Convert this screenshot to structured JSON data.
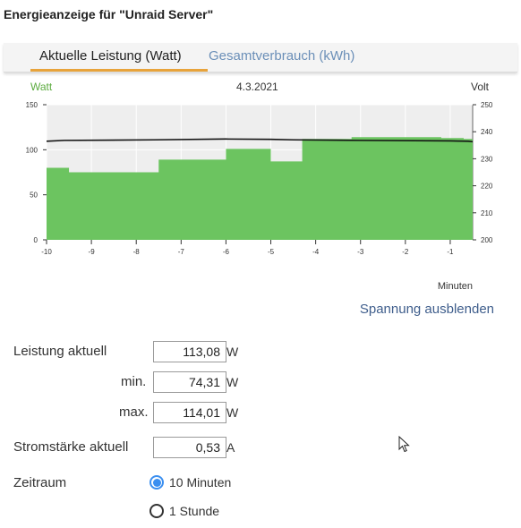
{
  "title": "Energieanzeige für \"Unraid Server\"",
  "tabs": [
    {
      "label": "Aktuelle Leistung (Watt)",
      "active": true
    },
    {
      "label": "Gesamtverbrauch (kWh)",
      "active": false
    }
  ],
  "chart_data": {
    "type": "area",
    "date": "4.3.2021",
    "left_axis_label": "Watt",
    "right_axis_label": "Volt",
    "x_axis_label": "Minuten",
    "x_ticks": [
      -10,
      -9,
      -8,
      -7,
      -6,
      -5,
      -4,
      -3,
      -2,
      -1
    ],
    "xlim": [
      -10,
      -0.5
    ],
    "ylim_left": [
      0,
      150
    ],
    "left_ticks": [
      0,
      50,
      100,
      150
    ],
    "ylim_right": [
      200,
      250
    ],
    "right_ticks": [
      200,
      210,
      220,
      230,
      240,
      250
    ],
    "grid": true,
    "series": [
      {
        "name": "Watt",
        "axis": "left",
        "style": "step-area",
        "color": "#6cc460",
        "x": [
          -10,
          -9.5,
          -8.5,
          -7.5,
          -6.0,
          -5.0,
          -4.3,
          -3.2,
          -1.2,
          -0.7
        ],
        "y": [
          80,
          75,
          75,
          89,
          101,
          87,
          112,
          114,
          113,
          112
        ]
      },
      {
        "name": "Volt",
        "axis": "right",
        "style": "line",
        "color": "#111111",
        "x": [
          -10,
          -9.6,
          -7.6,
          -6.0,
          -5.0,
          -4.5,
          -3.0,
          -1.0,
          -0.6,
          -0.5
        ],
        "y": [
          236.5,
          236.8,
          237.0,
          237.3,
          237.2,
          237.0,
          236.8,
          236.6,
          236.5,
          236.3
        ]
      }
    ]
  },
  "toggle_voltage_label": "Spannung ausblenden",
  "readings": {
    "power_label": "Leistung aktuell",
    "power_value": "113,08",
    "min_label": "min.",
    "min_value": "74,31",
    "max_label": "max.",
    "max_value": "114,01",
    "power_unit": "W",
    "current_label": "Stromstärke aktuell",
    "current_value": "0,53",
    "current_unit": "A"
  },
  "timerange": {
    "label": "Zeitraum",
    "options": [
      {
        "label": "10 Minuten",
        "checked": true
      },
      {
        "label": "1 Stunde",
        "checked": false
      }
    ]
  },
  "colors": {
    "accent_tab": "#e8a33a",
    "link": "#3f5e8c",
    "watt_label": "#5cab3f",
    "radio_checked": "#3b8ff0"
  }
}
